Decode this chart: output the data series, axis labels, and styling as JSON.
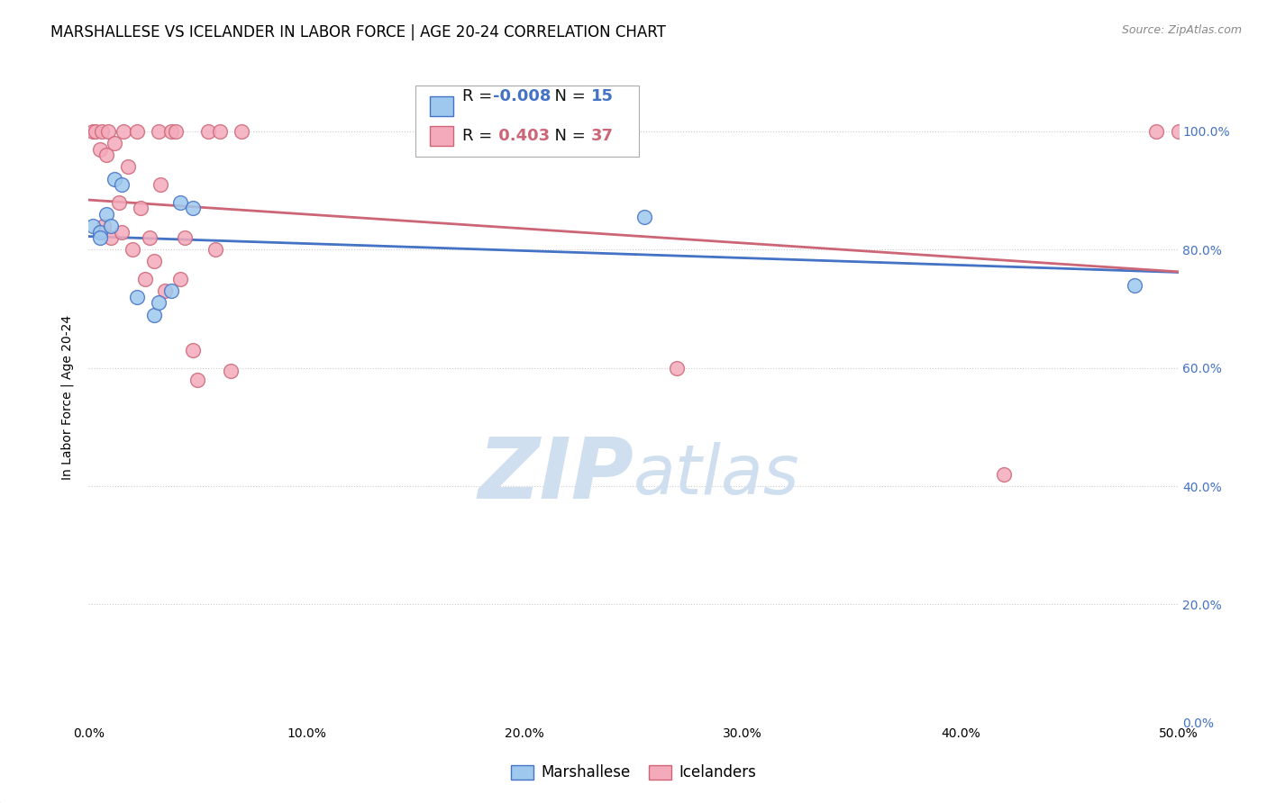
{
  "title": "MARSHALLESE VS ICELANDER IN LABOR FORCE | AGE 20-24 CORRELATION CHART",
  "source": "Source: ZipAtlas.com",
  "ylabel_label": "In Labor Force | Age 20-24",
  "xlim": [
    0.0,
    0.5
  ],
  "ylim": [
    0.0,
    1.1
  ],
  "ytick_vals": [
    0.0,
    0.2,
    0.4,
    0.6,
    0.8,
    1.0
  ],
  "xtick_vals": [
    0.0,
    0.1,
    0.2,
    0.3,
    0.4,
    0.5
  ],
  "marshallese_x": [
    0.002,
    0.005,
    0.005,
    0.008,
    0.01,
    0.012,
    0.015,
    0.022,
    0.03,
    0.032,
    0.038,
    0.042,
    0.048,
    0.255,
    0.48
  ],
  "marshallese_y": [
    0.84,
    0.83,
    0.82,
    0.86,
    0.84,
    0.92,
    0.91,
    0.72,
    0.69,
    0.71,
    0.73,
    0.88,
    0.87,
    0.855,
    0.74
  ],
  "icelander_x": [
    0.002,
    0.003,
    0.005,
    0.006,
    0.007,
    0.008,
    0.009,
    0.01,
    0.012,
    0.014,
    0.015,
    0.016,
    0.018,
    0.02,
    0.022,
    0.024,
    0.026,
    0.028,
    0.03,
    0.032,
    0.033,
    0.035,
    0.038,
    0.04,
    0.042,
    0.044,
    0.048,
    0.05,
    0.055,
    0.058,
    0.06,
    0.065,
    0.07,
    0.27,
    0.42,
    0.49,
    0.5
  ],
  "icelander_y": [
    1.0,
    1.0,
    0.97,
    1.0,
    0.84,
    0.96,
    1.0,
    0.82,
    0.98,
    0.88,
    0.83,
    1.0,
    0.94,
    0.8,
    1.0,
    0.87,
    0.75,
    0.82,
    0.78,
    1.0,
    0.91,
    0.73,
    1.0,
    1.0,
    0.75,
    0.82,
    0.63,
    0.58,
    1.0,
    0.8,
    1.0,
    0.595,
    1.0,
    0.6,
    0.42,
    1.0,
    1.0
  ],
  "marshallese_R": "-0.008",
  "marshallese_N": "15",
  "icelander_R": "0.403",
  "icelander_N": "37",
  "blue_color": "#9EC8EE",
  "pink_color": "#F4AABB",
  "blue_line_color": "#4472C4",
  "pink_line_color": "#CC6677",
  "grid_color": "#CCCCCC",
  "watermark_color": "#D0DFF0",
  "title_fontsize": 12,
  "axis_label_fontsize": 10,
  "tick_fontsize": 10,
  "source_fontsize": 9,
  "legend_fontsize": 13
}
